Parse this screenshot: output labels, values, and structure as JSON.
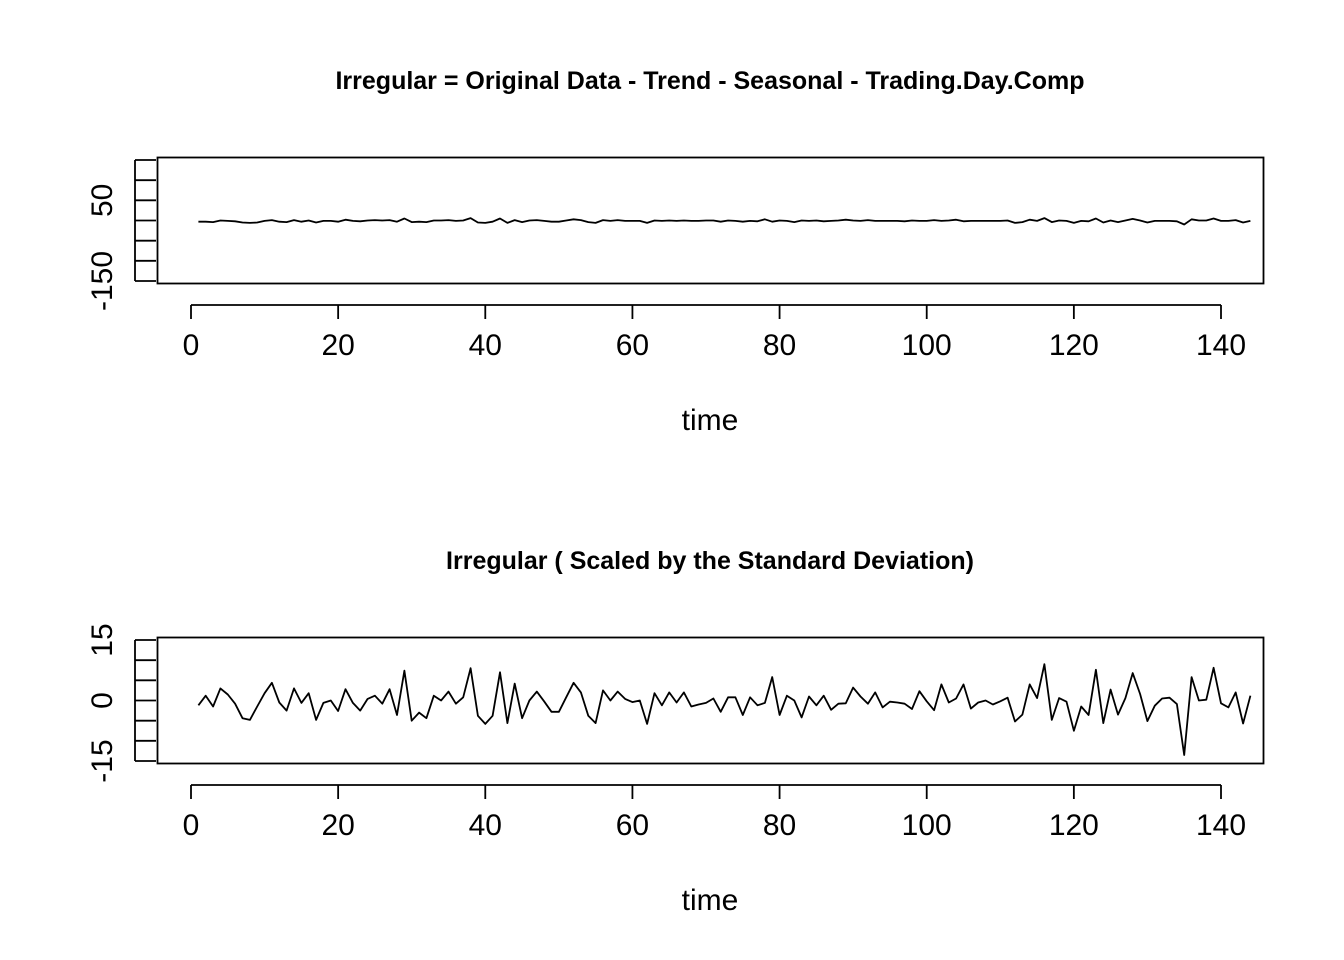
{
  "chart_data": [
    {
      "type": "line",
      "title": "Irregular = Original Data - Trend - Seasonal - Trading.Day.Comp",
      "xlabel": "time",
      "ylabel": "",
      "xlim": [
        1,
        144
      ],
      "ylim": [
        -150,
        150
      ],
      "xticks": [
        "0",
        "20",
        "40",
        "60",
        "80",
        "100",
        "120",
        "140"
      ],
      "yticks": [
        "-150",
        "50"
      ],
      "series": [
        {
          "x_start": 1,
          "values": [
            -3,
            -3,
            -4,
            0,
            -1,
            -2,
            -5,
            -6,
            -5,
            -1,
            1,
            -3,
            -4,
            1,
            -3,
            0,
            -5,
            -1,
            -1,
            -3,
            2,
            -1,
            -2,
            0,
            1,
            0,
            1,
            -3,
            5,
            -4,
            -3,
            -4,
            0,
            0,
            1,
            -1,
            0,
            6,
            -5,
            -6,
            -3,
            5,
            -6,
            1,
            -4,
            0,
            1,
            -1,
            -3,
            -3,
            0,
            3,
            1,
            -4,
            -6,
            1,
            -1,
            1,
            -1,
            -1,
            -1,
            -6,
            0,
            -1,
            0,
            -1,
            0,
            -1,
            -1,
            0,
            0,
            -3,
            0,
            -1,
            -3,
            -1,
            -2,
            3,
            -3,
            0,
            -1,
            -4,
            0,
            -1,
            0,
            -2,
            -1,
            0,
            2,
            0,
            -1,
            1,
            -1,
            -1,
            -1,
            -1,
            -2,
            0,
            -1,
            -1,
            1,
            -1,
            0,
            2,
            -2,
            -1,
            -1,
            -1,
            -1,
            -1,
            0,
            -6,
            -4,
            2,
            -1,
            6,
            -4,
            0,
            -1,
            -6,
            -1,
            -2,
            5,
            -5,
            0,
            -4,
            0,
            4,
            0,
            -5,
            -1,
            -1,
            -1,
            -2,
            -10,
            3,
            0,
            0,
            5,
            -1,
            -1,
            1,
            -5,
            -1
          ]
        }
      ]
    },
    {
      "type": "line",
      "title": "Irregular ( Scaled by the Standard Deviation)",
      "xlabel": "time",
      "ylabel": "",
      "xlim": [
        1,
        144
      ],
      "ylim": [
        -15,
        15
      ],
      "xticks": [
        "0",
        "20",
        "40",
        "60",
        "80",
        "100",
        "120",
        "140"
      ],
      "yticks": [
        "-15",
        "0",
        "15"
      ],
      "series": [
        {
          "x_start": 1,
          "values": [
            -1.2,
            1.2,
            -1.5,
            3.0,
            1.5,
            -0.8,
            -4.4,
            -4.8,
            -1.5,
            1.8,
            4.4,
            -0.5,
            -2.5,
            3.0,
            -0.6,
            1.8,
            -4.8,
            -0.6,
            0.0,
            -2.6,
            2.8,
            -0.6,
            -2.5,
            0.4,
            1.2,
            -0.8,
            2.8,
            -3.6,
            7.4,
            -5.0,
            -3.0,
            -4.4,
            1.2,
            0.0,
            2.2,
            -0.8,
            0.8,
            8.0,
            -3.8,
            -5.8,
            -3.8,
            7.0,
            -5.6,
            4.2,
            -4.4,
            0.0,
            2.2,
            -0.2,
            -2.8,
            -2.8,
            0.8,
            4.4,
            2.0,
            -3.8,
            -5.6,
            2.5,
            0.0,
            2.2,
            0.4,
            -0.4,
            0.0,
            -5.8,
            1.8,
            -1.2,
            2.0,
            -0.5,
            2.0,
            -1.5,
            -1.0,
            -0.6,
            0.5,
            -2.8,
            0.8,
            0.8,
            -3.6,
            0.8,
            -1.2,
            -0.6,
            5.8,
            -3.6,
            1.2,
            0.0,
            -4.2,
            1.0,
            -1.2,
            1.2,
            -2.3,
            -0.8,
            -0.7,
            3.2,
            1.0,
            -0.8,
            2.0,
            -1.7,
            -0.3,
            -0.5,
            -0.8,
            -2.1,
            2.3,
            -0.2,
            -2.4,
            4.0,
            -0.5,
            0.5,
            4.0,
            -2.0,
            -0.5,
            0.0,
            -1.0,
            -0.2,
            0.7,
            -5.2,
            -3.5,
            4.0,
            0.6,
            9.0,
            -4.8,
            0.6,
            -0.3,
            -7.5,
            -1.5,
            -3.6,
            7.6,
            -5.6,
            2.7,
            -3.5,
            0.6,
            6.8,
            1.6,
            -5.1,
            -1.3,
            0.5,
            0.7,
            -0.9,
            -13.5,
            5.8,
            0.0,
            0.2,
            8.1,
            -0.7,
            -1.7,
            2.0,
            -5.7,
            1.2
          ]
        }
      ]
    }
  ]
}
